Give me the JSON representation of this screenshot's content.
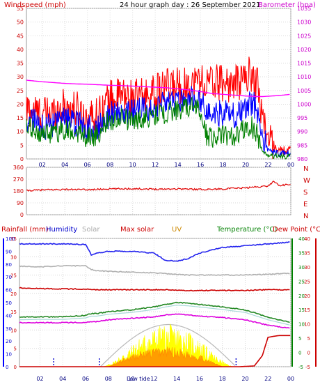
{
  "chart_data": [
    {
      "type": "line",
      "title": "24 hour graph day : 26 September 2021",
      "ylabel_left": "Windspeed (mph)",
      "ylabel_right": "Barometer (hpa)",
      "ylim_left": [
        0,
        55
      ],
      "ylim_right": [
        980,
        1035
      ],
      "yticks_left": [
        "0",
        "5",
        "10",
        "15",
        "20",
        "25",
        "30",
        "35",
        "40",
        "45",
        "50",
        "55"
      ],
      "yticks_right": [
        "980",
        "985",
        "990",
        "995",
        "1000",
        "1005",
        "1010",
        "1015",
        "1020",
        "1025",
        "1030",
        "1035"
      ],
      "xticks": [
        "02",
        "04",
        "06",
        "08",
        "10",
        "12",
        "14",
        "16",
        "18",
        "20",
        "22",
        "00"
      ],
      "x_hours": [
        0,
        1,
        2,
        3,
        4,
        5,
        6,
        7,
        7.5,
        8,
        9,
        10,
        11,
        12,
        13,
        14,
        15,
        15.5,
        16,
        16.5,
        17,
        18,
        19,
        20,
        20.5,
        21,
        21.5,
        22,
        23,
        24
      ],
      "series": [
        {
          "color": "#ff0000",
          "values": [
            17,
            18,
            16,
            17,
            19,
            18,
            15,
            16,
            20,
            22,
            23,
            22,
            23,
            24,
            26,
            27,
            27,
            28,
            29,
            27,
            28,
            28,
            27,
            30,
            31,
            28,
            16,
            7,
            3,
            3
          ]
        },
        {
          "color": "#0000ff",
          "values": [
            13,
            14,
            12,
            12,
            14,
            13,
            11,
            12,
            15,
            16,
            17,
            17,
            18,
            19,
            20,
            21,
            22,
            22,
            21,
            18,
            16,
            17,
            16,
            18,
            20,
            19,
            8,
            3,
            2,
            2
          ]
        },
        {
          "color": "#008000",
          "values": [
            10,
            11,
            9,
            9,
            11,
            10,
            8,
            9,
            13,
            14,
            15,
            14,
            15,
            16,
            17,
            18,
            19,
            19,
            18,
            9,
            8,
            9,
            8,
            11,
            12,
            9,
            3,
            1,
            1,
            1
          ]
        },
        {
          "color": "#ff00ff",
          "axis": "right",
          "values": [
            1009,
            1008.6,
            1008.2,
            1007.9,
            1007.6,
            1007.4,
            1007.3,
            1007.1,
            1007.0,
            1006.9,
            1006.8,
            1006.6,
            1006.4,
            1006.2,
            1006.0,
            1005.6,
            1005.2,
            1004.9,
            1004.6,
            1004.3,
            1003.9,
            1003.6,
            1003.3,
            1003.0,
            1002.9,
            1002.8,
            1002.8,
            1002.9,
            1003.2,
            1003.6
          ]
        }
      ]
    },
    {
      "type": "line",
      "yticks": [
        "0",
        "90",
        "180",
        "270",
        "360"
      ],
      "ylim": [
        0,
        360
      ],
      "compass": [
        "N",
        "W",
        "S",
        "E",
        "N"
      ],
      "xticks": [
        "02",
        "04",
        "06",
        "08",
        "10",
        "12",
        "14",
        "16",
        "18",
        "20",
        "22",
        "00"
      ],
      "x_hours": [
        0,
        2,
        4,
        6,
        8,
        10,
        12,
        14,
        16,
        18,
        20,
        21,
        22,
        22.5,
        23,
        24
      ],
      "series": [
        {
          "color": "#e00000",
          "values": [
            180,
            188,
            192,
            190,
            196,
            198,
            194,
            197,
            192,
            196,
            204,
            212,
            218,
            255,
            222,
            230
          ]
        }
      ]
    },
    {
      "type": "line",
      "legend": [
        "Rainfall (mm)",
        "Humidity",
        "Solar",
        "Max solar",
        "UV",
        "Temperature (°C)",
        "Dew Point (°C)"
      ],
      "legend_colors": [
        "#0000ff",
        "#0000cc",
        "#aaaaaa",
        "#cc0000",
        "#cc8800",
        "#008000",
        "#cc0000"
      ],
      "yticks_rain": [
        "0",
        "5",
        "10",
        "15",
        "20",
        "25",
        "30",
        "35",
        "40",
        "45",
        "50",
        "55",
        "60",
        "65",
        "70",
        "75",
        "80",
        "85",
        "90",
        "95",
        "100"
      ],
      "yticks_hum": [
        "0",
        "5",
        "10",
        "15",
        "20",
        "25",
        "30",
        "35",
        "40",
        "45",
        "50",
        "55",
        "60",
        "65",
        "70",
        "75",
        "80",
        "85",
        "90",
        "95",
        "100"
      ],
      "yticks_temp": [
        "-5",
        "0",
        "5",
        "10",
        "15",
        "20",
        "25",
        "30",
        "35",
        "40"
      ],
      "ylim_temp": [
        -5,
        40
      ],
      "xticks": [
        "02",
        "04",
        "06",
        "08",
        "10",
        "12",
        "14",
        "16",
        "18",
        "20",
        "22",
        "00"
      ],
      "annotations": [
        "Low tide"
      ],
      "x_hours": [
        0,
        2,
        4,
        6,
        6.5,
        7,
        8,
        10,
        12,
        13,
        14,
        15,
        16,
        18,
        20,
        22,
        24
      ],
      "series": [
        {
          "name": "Humidity",
          "color": "#2222ee",
          "values": [
            33.5,
            33.5,
            33.5,
            33.3,
            30.5,
            31,
            31.5,
            31.5,
            31,
            29,
            28.8,
            29.5,
            31,
            32.5,
            33,
            33.5,
            34
          ]
        },
        {
          "name": "Solar",
          "color": "#b0b0b0",
          "values": [
            27.5,
            27.2,
            27.5,
            27.5,
            26.5,
            26.2,
            26,
            25.8,
            25.6,
            25.4,
            25.2,
            25,
            25,
            25,
            25,
            25.2,
            25.5
          ]
        },
        {
          "name": "Max solar",
          "color": "#cc0000",
          "values": [
            21.5,
            21.3,
            21.2,
            21.2,
            21.1,
            21,
            21,
            21,
            21,
            21,
            20.8,
            20.8,
            20.8,
            20.8,
            20.8,
            21,
            21
          ]
        },
        {
          "name": "Temperature",
          "color": "#228822",
          "values": [
            13.5,
            13.6,
            13.6,
            14,
            14.5,
            14.5,
            15,
            15.5,
            16.3,
            17,
            17.5,
            17.3,
            17,
            16.3,
            15.5,
            13.5,
            12
          ]
        },
        {
          "name": "Dew Point",
          "color": "#dd00dd",
          "values": [
            12,
            12,
            12,
            12.1,
            12.3,
            12.3,
            12.8,
            13.2,
            13.6,
            14.1,
            14.3,
            14.2,
            13.8,
            13.4,
            12.8,
            11.3,
            10.5
          ]
        }
      ],
      "rain_cumulative": {
        "color": "#cc0000",
        "x_hours": [
          0,
          19.5,
          20.8,
          21.5,
          22,
          22.5,
          23,
          24
        ],
        "values": [
          0,
          0,
          0.2,
          3,
          8,
          8.3,
          8.5,
          8.5
        ]
      },
      "max_solar_curve": {
        "color": "#b8b8b8",
        "start": 7.3,
        "end": 19.2,
        "peak": 13.2,
        "peak_value": 11.5
      },
      "solar_fill": {
        "color": "#ffff00",
        "start": 7.5,
        "end": 19,
        "peak": 13,
        "peak_value": 8
      },
      "uv_fill": {
        "color": "#ff8c00",
        "start": 8,
        "end": 18,
        "peak": 13,
        "peak_value": 4
      },
      "markers": [
        3.2,
        7.2,
        19.2
      ]
    }
  ]
}
